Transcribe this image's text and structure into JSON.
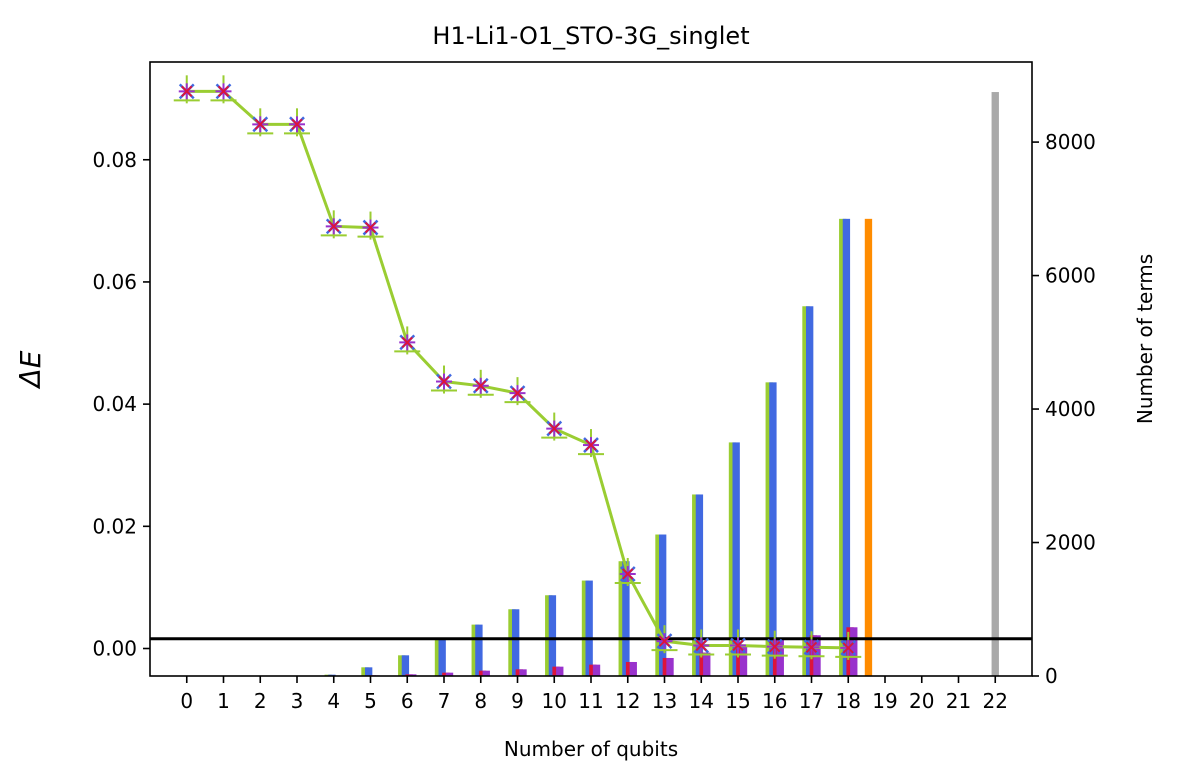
{
  "chart_data": {
    "type": "bar+line",
    "title": "H1-Li1-O1_STO-3G_singlet",
    "xlabel": "Number of qubits",
    "ylabel_left": "ΔE",
    "ylabel_right": "Number of terms",
    "x_ticks": [
      0,
      1,
      2,
      3,
      4,
      5,
      6,
      7,
      8,
      9,
      10,
      11,
      12,
      13,
      14,
      15,
      16,
      17,
      18,
      19,
      20,
      21,
      22
    ],
    "ylim_left": [
      -0.0045,
      0.096
    ],
    "ylim_right": [
      0,
      9200
    ],
    "yticks_left": [
      0.0,
      0.02,
      0.04,
      0.06,
      0.08
    ],
    "ytick_labels_left": [
      "0.00",
      "0.02",
      "0.04",
      "0.06",
      "0.08"
    ],
    "yticks_right": [
      0,
      2000,
      4000,
      6000,
      8000
    ],
    "ytick_labels_right": [
      "0",
      "2000",
      "4000",
      "6000",
      "8000"
    ],
    "threshold_line": {
      "y": 0.0016,
      "color": "#000000"
    },
    "delta_e_series": {
      "x": [
        0,
        1,
        2,
        3,
        4,
        5,
        6,
        7,
        8,
        9,
        10,
        11,
        12,
        13,
        14,
        15,
        16,
        17,
        18
      ],
      "values": [
        0.0912,
        0.0912,
        0.0858,
        0.0858,
        0.0691,
        0.0689,
        0.0501,
        0.0437,
        0.043,
        0.0418,
        0.036,
        0.0333,
        0.0122,
        0.0012,
        0.0005,
        0.0005,
        0.0003,
        0.0002,
        0.0001
      ],
      "line_color": "#9acd32",
      "marker_colors": [
        "#9acd32",
        "#4169e1",
        "#dc143c",
        "#9932cc"
      ]
    },
    "bar_series": [
      {
        "name": "",
        "color": "#9acd32",
        "offset": -0.15,
        "x": [
          4,
          5,
          6,
          7,
          8,
          9,
          10,
          11,
          12,
          13,
          14,
          15,
          16,
          17,
          18
        ],
        "values": [
          20,
          130,
          310,
          570,
          770,
          1000,
          1210,
          1430,
          1720,
          2120,
          2720,
          3500,
          4400,
          5540,
          6850
        ]
      },
      {
        "name": "",
        "color": "#4169e1",
        "offset": -0.05,
        "x": [
          4,
          5,
          6,
          7,
          8,
          9,
          10,
          11,
          12,
          13,
          14,
          15,
          16,
          17,
          18
        ],
        "values": [
          20,
          130,
          310,
          570,
          770,
          1000,
          1210,
          1430,
          1720,
          2120,
          2720,
          3500,
          4400,
          5540,
          6850
        ]
      },
      {
        "name": "",
        "color": "#dc143c",
        "offset": 0.05,
        "x": [
          5,
          6,
          7,
          8,
          9,
          10,
          11,
          12,
          13,
          14,
          15,
          16,
          17,
          18
        ],
        "values": [
          10,
          25,
          50,
          80,
          100,
          140,
          170,
          210,
          270,
          350,
          450,
          560,
          610,
          730
        ]
      },
      {
        "name": "",
        "color": "#9932cc",
        "offset": 0.15,
        "x": [
          5,
          6,
          7,
          8,
          9,
          10,
          11,
          12,
          13,
          14,
          15,
          16,
          17,
          18
        ],
        "values": [
          10,
          25,
          50,
          80,
          100,
          140,
          170,
          210,
          270,
          350,
          450,
          560,
          610,
          730
        ]
      },
      {
        "name": "",
        "color": "#ff8c00",
        "offset": 0.55,
        "x": [
          18
        ],
        "values": [
          6850
        ]
      },
      {
        "name": "",
        "color": "#a9a9a9",
        "offset": 0.0,
        "x": [
          22
        ],
        "values": [
          8750
        ]
      }
    ]
  }
}
